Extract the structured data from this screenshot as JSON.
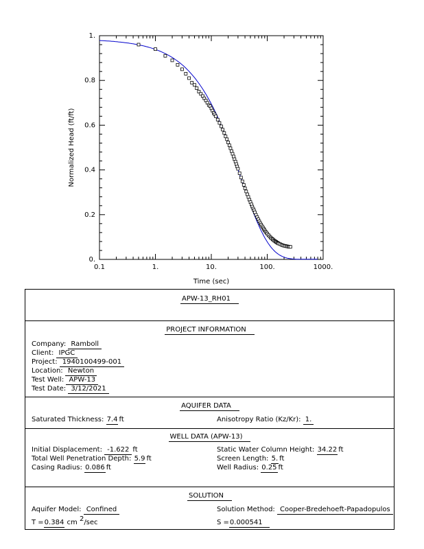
{
  "chart_data": {
    "type": "scatter",
    "xlabel": "Time  (sec)",
    "ylabel": "Normalized Head (ft/ft)",
    "xscale": "log",
    "xlim": [
      0.1,
      1000
    ],
    "ylim": [
      0,
      1
    ],
    "x_tick_labels": [
      "0.1",
      "1.",
      "10.",
      "100.",
      "1000."
    ],
    "y_tick_labels": [
      "0.",
      "0.2",
      "0.4",
      "0.6",
      "0.8",
      "1."
    ],
    "observed_points": [
      [
        0.5,
        0.96
      ],
      [
        1.0,
        0.94
      ],
      [
        1.5,
        0.91
      ],
      [
        2.0,
        0.89
      ],
      [
        2.5,
        0.87
      ],
      [
        3.0,
        0.85
      ],
      [
        3.5,
        0.83
      ],
      [
        4.0,
        0.81
      ],
      [
        4.5,
        0.79
      ],
      [
        5.0,
        0.78
      ],
      [
        5.5,
        0.765
      ],
      [
        6.0,
        0.75
      ],
      [
        6.5,
        0.74
      ],
      [
        7.0,
        0.73
      ],
      [
        7.5,
        0.72
      ],
      [
        8.0,
        0.71
      ],
      [
        8.5,
        0.7
      ],
      [
        9.0,
        0.69
      ],
      [
        9.5,
        0.685
      ],
      [
        10,
        0.675
      ],
      [
        10.5,
        0.665
      ],
      [
        11,
        0.655
      ],
      [
        11.5,
        0.648
      ],
      [
        12,
        0.64
      ],
      [
        13,
        0.625
      ],
      [
        14,
        0.61
      ],
      [
        15,
        0.595
      ],
      [
        16,
        0.58
      ],
      [
        17,
        0.565
      ],
      [
        18,
        0.55
      ],
      [
        19,
        0.537
      ],
      [
        20,
        0.523
      ],
      [
        21,
        0.51
      ],
      [
        22,
        0.497
      ],
      [
        23,
        0.484
      ],
      [
        24,
        0.472
      ],
      [
        25,
        0.46
      ],
      [
        26,
        0.448
      ],
      [
        27,
        0.437
      ],
      [
        28,
        0.426
      ],
      [
        29,
        0.415
      ],
      [
        30,
        0.405
      ],
      [
        32,
        0.385
      ],
      [
        34,
        0.366
      ],
      [
        36,
        0.349
      ],
      [
        38,
        0.333
      ],
      [
        40,
        0.318
      ],
      [
        42,
        0.304
      ],
      [
        44,
        0.291
      ],
      [
        46,
        0.279
      ],
      [
        48,
        0.267
      ],
      [
        50,
        0.256
      ],
      [
        52,
        0.246
      ],
      [
        54,
        0.236
      ],
      [
        56,
        0.227
      ],
      [
        58,
        0.219
      ],
      [
        60,
        0.21
      ],
      [
        63,
        0.199
      ],
      [
        66,
        0.189
      ],
      [
        69,
        0.179
      ],
      [
        72,
        0.17
      ],
      [
        75,
        0.162
      ],
      [
        78,
        0.155
      ],
      [
        81,
        0.148
      ],
      [
        84,
        0.142
      ],
      [
        87,
        0.136
      ],
      [
        90,
        0.13
      ],
      [
        93,
        0.125
      ],
      [
        96,
        0.12
      ],
      [
        100,
        0.115
      ],
      [
        105,
        0.109
      ],
      [
        110,
        0.103
      ],
      [
        115,
        0.098
      ],
      [
        120,
        0.094
      ],
      [
        125,
        0.09
      ],
      [
        130,
        0.086
      ],
      [
        135,
        0.083
      ],
      [
        140,
        0.08
      ],
      [
        145,
        0.078
      ],
      [
        150,
        0.075
      ],
      [
        155,
        0.073
      ],
      [
        160,
        0.071
      ],
      [
        170,
        0.068
      ],
      [
        180,
        0.065
      ],
      [
        190,
        0.063
      ],
      [
        200,
        0.061
      ],
      [
        210,
        0.06
      ],
      [
        220,
        0.059
      ],
      [
        230,
        0.058
      ],
      [
        240,
        0.057
      ],
      [
        250,
        0.056
      ],
      [
        260,
        0.056
      ]
    ],
    "curve_color": "#0000cc",
    "marker": "open-square",
    "grid": false
  },
  "report": {
    "title": "APW-13_RH01",
    "project_header": "PROJECT INFORMATION",
    "company_label": "Company:",
    "company": "Ramboll",
    "client_label": "Client:",
    "client": "IPGC",
    "project_label": "Project:",
    "project": "1940100499-001",
    "location_label": "Location:",
    "location": "Newton",
    "test_well_label": "Test Well:",
    "test_well": "APW-13",
    "test_date_label": "Test Date:",
    "test_date": "3/12/2021",
    "aquifer_header": "AQUIFER DATA",
    "sat_thickness_label": "Saturated Thickness:",
    "sat_thickness": "7.4",
    "sat_thickness_unit": "ft",
    "anisotropy_label": "Anisotropy Ratio (Kz/Kr):",
    "anisotropy": "1.",
    "well_header": "WELL DATA (APW-13)",
    "init_disp_label": "Initial Displacement:",
    "init_disp": "-1.622",
    "init_disp_unit": "ft",
    "static_label": "Static Water Column Height:",
    "static": "34.22",
    "static_unit": "ft",
    "penetration_label": "Total Well Penetration Depth:",
    "penetration": "5.9",
    "penetration_unit": "ft",
    "screen_label": "Screen Length:",
    "screen": "5.",
    "screen_unit": "ft",
    "casing_label": "Casing Radius:",
    "casing": "0.086",
    "casing_unit": "ft",
    "well_radius_label": "Well Radius:",
    "well_radius": "0.25",
    "well_radius_unit": "ft",
    "solution_header": "SOLUTION",
    "aquifer_model_label": "Aquifer Model:",
    "aquifer_model": "Confined",
    "solution_method_label": "Solution Method:",
    "solution_method": "Cooper-Bredehoeft-Papadopulos",
    "t_label": "T =",
    "t_value": "0.384",
    "t_unit_pre": "cm",
    "t_unit_sup": "2",
    "t_unit_post": "/sec",
    "s_label": "S =",
    "s_value": "0.000541"
  }
}
